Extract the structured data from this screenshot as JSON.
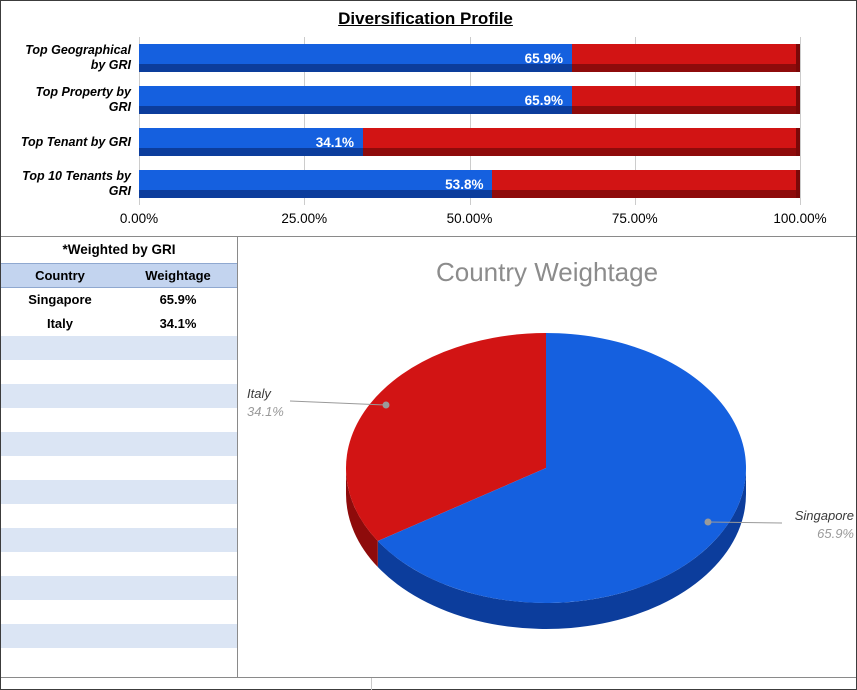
{
  "chart_data": [
    {
      "type": "bar",
      "orientation": "horizontal",
      "stacked": true,
      "title": "Diversification Profile",
      "categories": [
        "Top Geographical\nby GRI",
        "Top Property by\nGRI",
        "Top Tenant by GRI",
        "Top 10 Tenants by\nGRI"
      ],
      "series": [
        {
          "name": "filled",
          "color": "#1560DF",
          "values": [
            65.9,
            65.9,
            34.1,
            53.8
          ]
        },
        {
          "name": "remainder",
          "color": "#D21414",
          "values": [
            34.1,
            34.1,
            65.9,
            46.2
          ]
        }
      ],
      "value_labels": [
        "65.9%",
        "65.9%",
        "34.1%",
        "53.8%"
      ],
      "x_ticks": [
        "0.00%",
        "25.00%",
        "50.00%",
        "75.00%",
        "100.00%"
      ],
      "xlim": [
        0,
        100
      ],
      "grid": true,
      "legend": "none"
    },
    {
      "type": "pie",
      "effect": "3d",
      "title": "Country Weightage",
      "labels": [
        "Singapore",
        "Italy"
      ],
      "values": [
        65.9,
        34.1
      ],
      "value_labels": [
        "65.9%",
        "34.1%"
      ],
      "colors": [
        "#1560DF",
        "#D21414"
      ],
      "side_colors": [
        "#0C3D9C",
        "#8E0B0B"
      ],
      "start_angle_deg": 0,
      "direction": "clockwise"
    }
  ],
  "table": {
    "title": "*Weighted by GRI",
    "columns": [
      "Country",
      "Weightage"
    ],
    "rows": [
      [
        "Singapore",
        "65.9%"
      ],
      [
        "Italy",
        "34.1%"
      ]
    ],
    "empty_row_count": 14
  }
}
